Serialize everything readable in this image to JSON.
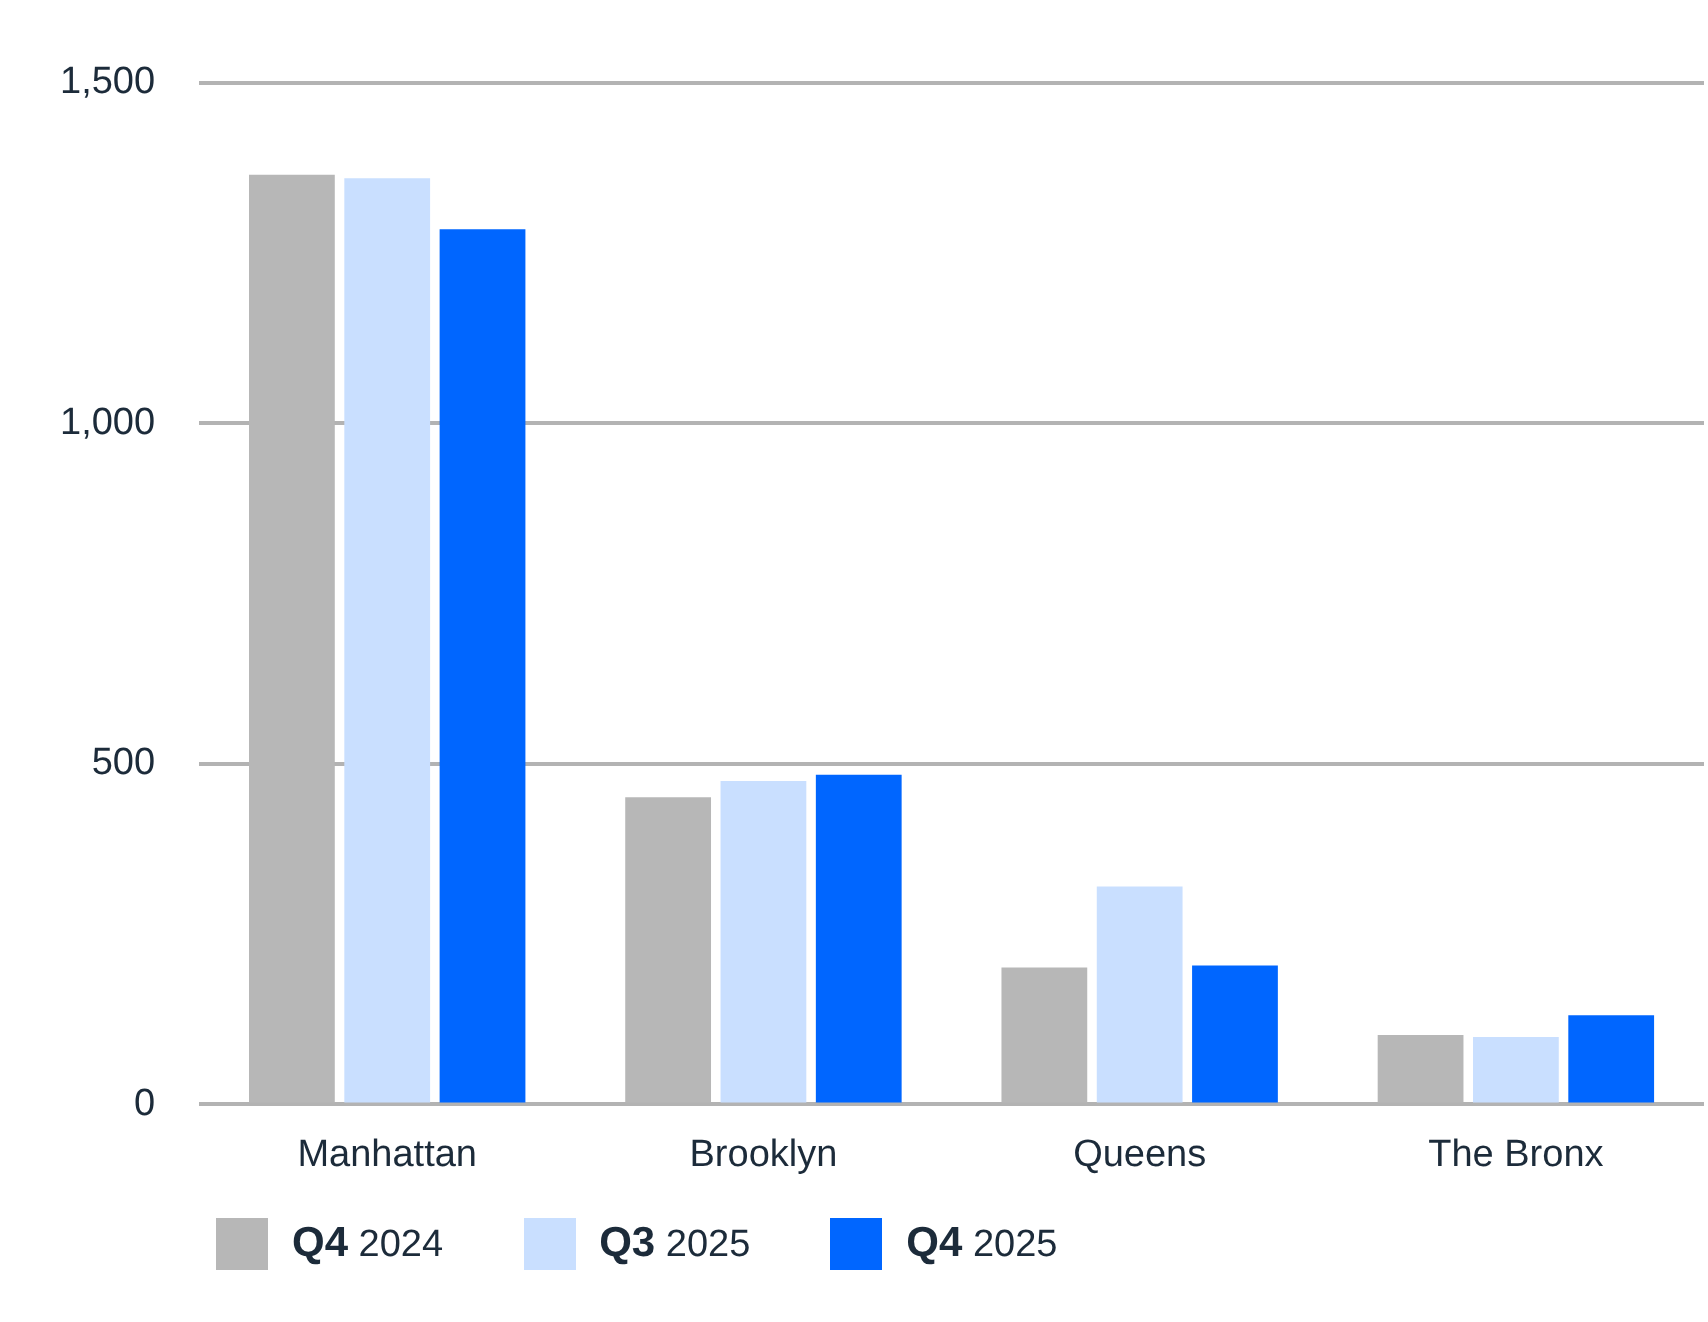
{
  "chart_data": {
    "type": "bar",
    "categories": [
      "Manhattan",
      "Brooklyn",
      "Queens",
      "The Bronx"
    ],
    "series": [
      {
        "name": "Q4 2024",
        "color": "#b7b7b7",
        "values": [
          1365,
          451,
          201,
          102
        ]
      },
      {
        "name": "Q3 2025",
        "color": "#c9dfff",
        "values": [
          1360,
          475,
          320,
          99
        ]
      },
      {
        "name": "Q4 2025",
        "color": "#0066ff",
        "values": [
          1285,
          484,
          204,
          131
        ]
      }
    ],
    "ylim": [
      0,
      1500
    ],
    "yticks": [
      0,
      {
        "value": 500,
        "label": "500"
      },
      {
        "value": 1000,
        "label": "1,000"
      },
      {
        "value": 1500,
        "label": "1,500"
      }
    ],
    "grid": "y",
    "legend": "bottom"
  }
}
